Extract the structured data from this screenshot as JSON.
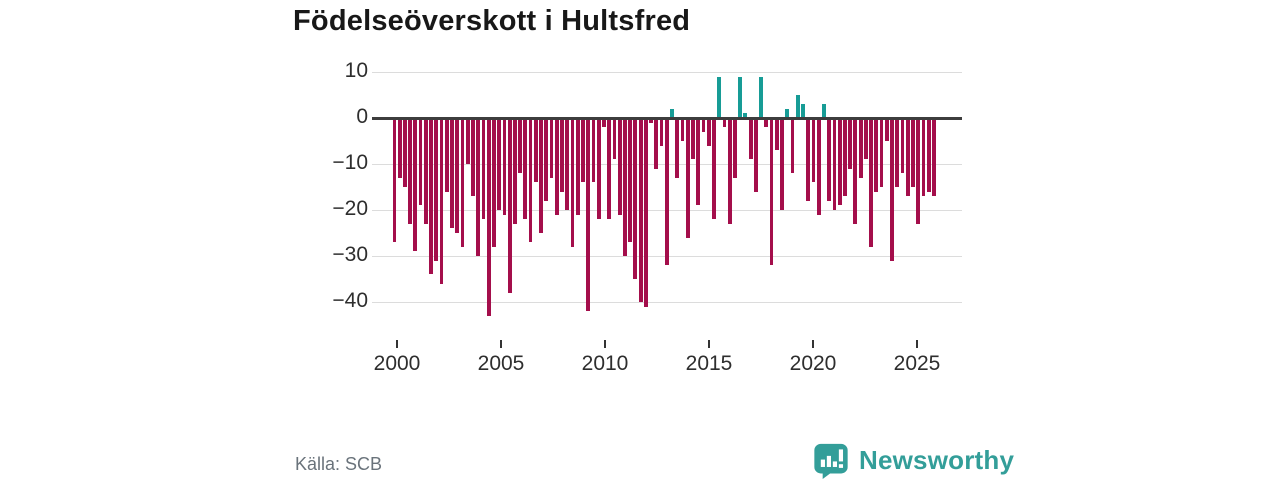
{
  "title": "Födelseöverskott i Hultsfred",
  "source": "Källa: SCB",
  "logo": {
    "text": "Newsworthy"
  },
  "colors": {
    "negative_bar": "#a40e4b",
    "positive_bar": "#179c96",
    "logo_teal": "#339e99",
    "grid": "#dcdcdc",
    "zero_line": "#3d3d3d",
    "axis_text": "#2e2e2e",
    "source_text": "#6a737b",
    "title_text": "#181818"
  },
  "chart_data": {
    "type": "bar",
    "title": "Födelseöverskott i Hultsfred",
    "xlabel": "",
    "ylabel": "",
    "frequency": "quarterly",
    "start_year": 2000,
    "x_tick_years": [
      2000,
      2005,
      2010,
      2015,
      2020,
      2025
    ],
    "y_ticks": [
      {
        "label": "10",
        "value": 10
      },
      {
        "label": "0",
        "value": 0
      },
      {
        "label": "−10",
        "value": -10
      },
      {
        "label": "−20",
        "value": -20
      },
      {
        "label": "−30",
        "value": -30
      },
      {
        "label": "−40",
        "value": -40
      }
    ],
    "ylim": [
      -45,
      12
    ],
    "grid": true,
    "legend": "none",
    "values": [
      -27,
      -13,
      -15,
      -23,
      -29,
      -19,
      -23,
      -34,
      -31,
      -36,
      -16,
      -24,
      -25,
      -28,
      -10,
      -17,
      -30,
      -22,
      -43,
      -28,
      -20,
      -21,
      -38,
      -23,
      -12,
      -22,
      -27,
      -14,
      -25,
      -18,
      -13,
      -21,
      -16,
      -20,
      -28,
      -21,
      -14,
      -42,
      -14,
      -22,
      -2,
      -22,
      -9,
      -21,
      -30,
      -27,
      -35,
      -40,
      -41,
      -1,
      -11,
      -6,
      -32,
      2,
      -13,
      -5,
      -26,
      -9,
      -19,
      -3,
      -6,
      -22,
      9,
      -2,
      -23,
      -13,
      9,
      1,
      -9,
      -16,
      9,
      -2,
      -32,
      -7,
      -20,
      2,
      -12,
      5,
      3,
      -18,
      -14,
      -21,
      3,
      -18,
      -20,
      -19,
      -17,
      -11,
      -23,
      -13,
      -9,
      -28,
      -16,
      -15,
      -5,
      -31,
      -15,
      -12,
      -17,
      -15,
      -23,
      -17,
      -16,
      -17
    ]
  }
}
